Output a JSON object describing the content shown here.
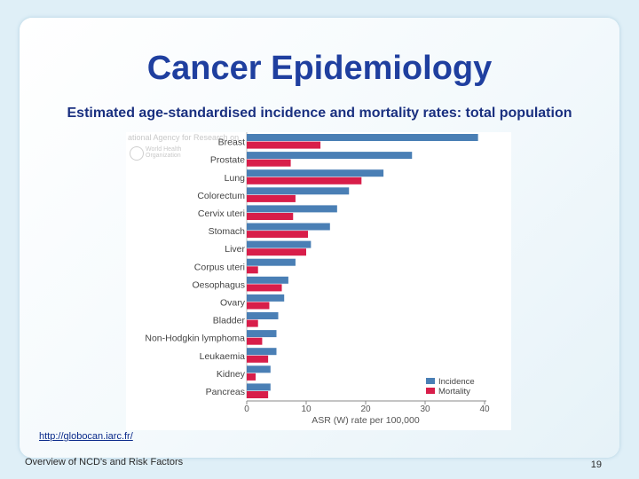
{
  "slide": {
    "title": "Cancer Epidemiology",
    "subtitle": "Estimated age-standardised incidence and mortality rates: total population",
    "link": "http://globocan.iarc.fr/",
    "footer": "Overview of NCD's and Risk Factors",
    "page_number": "19"
  },
  "watermark": {
    "agency": "ational Agency for Research on",
    "org": "World Health Organization"
  },
  "chart_data": {
    "type": "bar",
    "orientation": "horizontal",
    "categories": [
      "Breast",
      "Prostate",
      "Lung",
      "Colorectum",
      "Cervix uteri",
      "Stomach",
      "Liver",
      "Corpus uteri",
      "Oesophagus",
      "Ovary",
      "Bladder",
      "Non-Hodgkin lymphoma",
      "Leukaemia",
      "Kidney",
      "Pancreas"
    ],
    "series": [
      {
        "name": "Incidence",
        "color": "#4a7fb5",
        "values": [
          38.9,
          27.8,
          23.0,
          17.2,
          15.2,
          14.0,
          10.8,
          8.2,
          7.0,
          6.3,
          5.3,
          5.0,
          5.0,
          4.0,
          4.0
        ]
      },
      {
        "name": "Mortality",
        "color": "#d81e4a",
        "values": [
          12.4,
          7.4,
          19.3,
          8.2,
          7.8,
          10.3,
          10.0,
          1.9,
          5.9,
          3.8,
          1.9,
          2.6,
          3.6,
          1.5,
          3.6
        ]
      }
    ],
    "xlabel": "ASR (W) rate per 100,000",
    "xticks": [
      0,
      10,
      20,
      30,
      40
    ],
    "xlim": [
      0,
      40
    ],
    "legend": [
      "Incidence",
      "Mortality"
    ],
    "legend_position": "bottom-right"
  }
}
